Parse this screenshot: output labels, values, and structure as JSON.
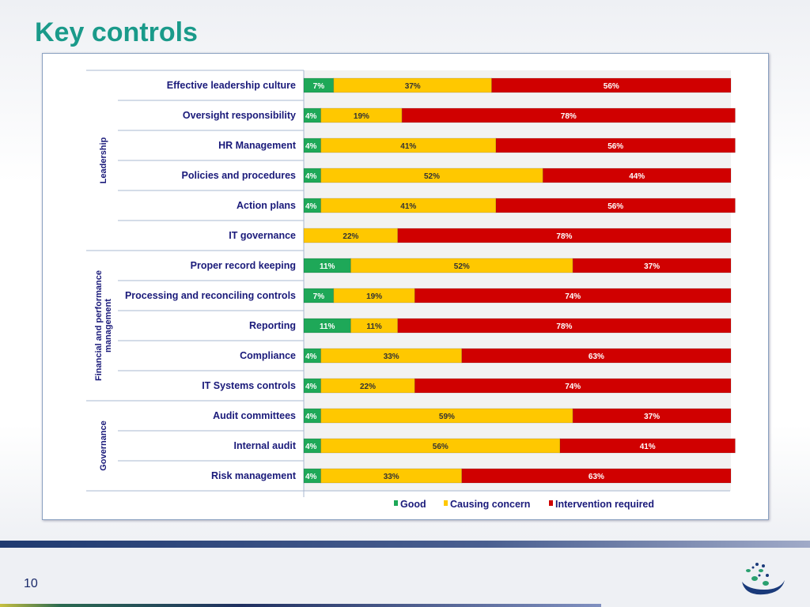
{
  "slide": {
    "title": "Key controls",
    "page_number": "10"
  },
  "colors": {
    "good": "#1ea858",
    "concern": "#ffc800",
    "intervention": "#d00000",
    "label": "#1a1a7a",
    "title": "#1a9a8a"
  },
  "chart_data": {
    "type": "bar",
    "orientation": "horizontal",
    "stacked": true,
    "xlim": [
      0,
      100
    ],
    "categories": [
      "Effective leadership culture",
      "Oversight responsibility",
      "HR Management",
      "Policies and procedures",
      "Action plans",
      "IT governance",
      "Proper record keeping",
      "Processing and reconciling controls",
      "Reporting",
      "Compliance",
      "IT Systems controls",
      "Audit committees",
      "Internal audit",
      "Risk management"
    ],
    "groups": [
      {
        "name": "Leadership",
        "count": 6
      },
      {
        "name": "Financial and performance management",
        "count": 5
      },
      {
        "name": "Governance",
        "count": 3
      }
    ],
    "series": [
      {
        "name": "Good",
        "values": [
          7,
          4,
          4,
          4,
          4,
          0,
          11,
          7,
          11,
          4,
          4,
          4,
          4,
          4
        ]
      },
      {
        "name": "Causing concern",
        "values": [
          37,
          19,
          41,
          52,
          41,
          22,
          52,
          19,
          11,
          33,
          22,
          59,
          56,
          33
        ]
      },
      {
        "name": "Intervention required",
        "values": [
          56,
          78,
          56,
          44,
          56,
          78,
          37,
          74,
          78,
          63,
          74,
          37,
          41,
          63
        ]
      }
    ],
    "legend": "bottom"
  }
}
